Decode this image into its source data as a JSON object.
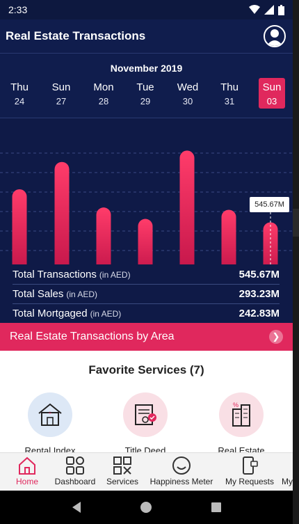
{
  "statusbar": {
    "time": "2:33"
  },
  "appbar": {
    "title": "Real Estate Transactions"
  },
  "datebar": {
    "month": "November 2019",
    "days": [
      {
        "name": "Thu",
        "num": "24"
      },
      {
        "name": "Sun",
        "num": "27"
      },
      {
        "name": "Mon",
        "num": "28"
      },
      {
        "name": "Tue",
        "num": "29"
      },
      {
        "name": "Wed",
        "num": "30"
      },
      {
        "name": "Thu",
        "num": "31"
      },
      {
        "name": "Sun",
        "num": "03"
      }
    ],
    "selected_index": 6
  },
  "chart_data": {
    "type": "bar",
    "categories": [
      "Thu 24",
      "Sun 27",
      "Mon 28",
      "Tue 29",
      "Wed 30",
      "Thu 31",
      "Sun 03"
    ],
    "values": [
      0.66,
      0.9,
      0.5,
      0.4,
      1.0,
      0.48,
      0.37
    ],
    "tooltip": "545.67M",
    "ylim": [
      0,
      1.1
    ],
    "grid": true
  },
  "summary": {
    "rows": [
      {
        "label": "Total Transactions",
        "unit": "(in AED)",
        "value": "545.67M"
      },
      {
        "label": "Total Sales",
        "unit": "(in AED)",
        "value": "293.23M"
      },
      {
        "label": "Total Mortgaged",
        "unit": "(in AED)",
        "value": "242.83M"
      }
    ]
  },
  "area": {
    "label": "Real Estate Transactions by Area"
  },
  "favorites": {
    "title": "Favorite Services (7)",
    "items": [
      {
        "label": "Rental Index",
        "icon": "house-icon"
      },
      {
        "label": "Title Deed",
        "icon": "title-deed-icon"
      },
      {
        "label": "Real Estate",
        "icon": "buildings-icon"
      }
    ]
  },
  "bottomnav": {
    "items": [
      {
        "label": "Home",
        "icon": "home-icon"
      },
      {
        "label": "Dashboard",
        "icon": "dashboard-icon"
      },
      {
        "label": "Services",
        "icon": "services-icon"
      },
      {
        "label": "Happiness Meter",
        "icon": "smiley-icon"
      },
      {
        "label": "My Requests",
        "icon": "requests-icon"
      },
      {
        "label": "My",
        "icon": "more-icon"
      }
    ]
  },
  "colors": {
    "accent": "#e0285d",
    "navy": "#101d4d"
  }
}
